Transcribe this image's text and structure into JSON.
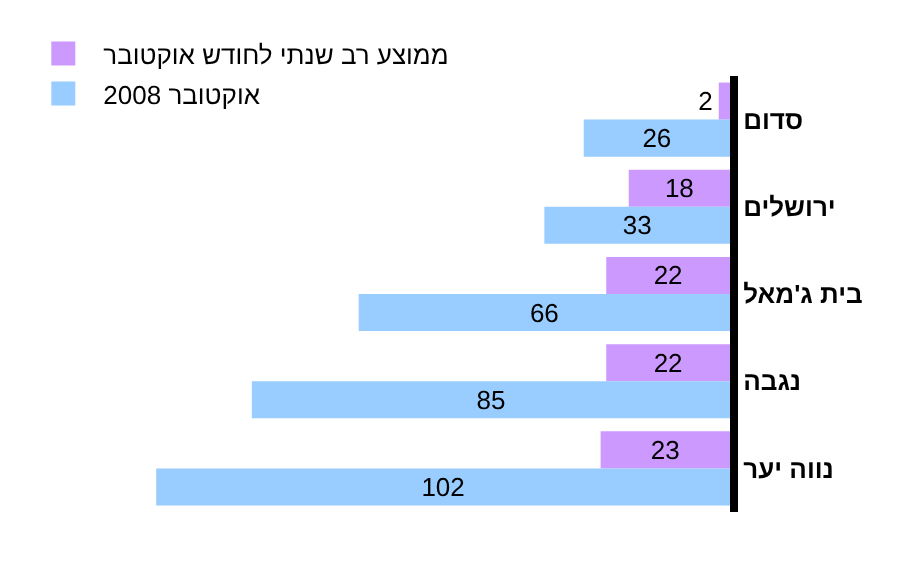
{
  "chart_data": {
    "type": "bar",
    "orientation": "horizontal",
    "categories": [
      "סדום",
      "ירושלים",
      "בית ג'מאל",
      "נגבה",
      "נווה יער"
    ],
    "series": [
      {
        "name": "ממוצע רב שנתי לחודש אוקטובר",
        "color": "#cc99ff",
        "values": [
          2,
          18,
          22,
          22,
          23
        ]
      },
      {
        "name": "אוקטובר 2008",
        "color": "#99ccff",
        "values": [
          26,
          33,
          66,
          85,
          102
        ]
      }
    ],
    "data_labels": true,
    "legend": "top left"
  }
}
